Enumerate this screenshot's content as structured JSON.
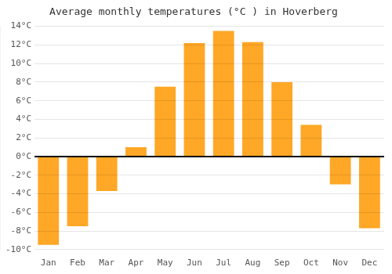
{
  "chart_data": {
    "type": "bar",
    "title": "Average monthly temperatures (°C ) in Hoverberg",
    "categories": [
      "Jan",
      "Feb",
      "Mar",
      "Apr",
      "May",
      "Jun",
      "Jul",
      "Aug",
      "Sep",
      "Oct",
      "Nov",
      "Dec"
    ],
    "values": [
      -9.5,
      -7.5,
      -3.7,
      1.0,
      7.5,
      12.2,
      13.5,
      12.3,
      8.0,
      3.4,
      -3.0,
      -7.7
    ],
    "color": "#FFA726",
    "ylim": [
      -10,
      14
    ],
    "yticks": [
      {
        "value": -10,
        "label": "-10°C"
      },
      {
        "value": -8,
        "label": "-8°C"
      },
      {
        "value": -6,
        "label": "-6°C"
      },
      {
        "value": -4,
        "label": "-4°C"
      },
      {
        "value": -2,
        "label": "-2°C"
      },
      {
        "value": 0,
        "label": "0°C"
      },
      {
        "value": 2,
        "label": "2°C"
      },
      {
        "value": 4,
        "label": "4°C"
      },
      {
        "value": 6,
        "label": "6°C"
      },
      {
        "value": 8,
        "label": "8°C"
      },
      {
        "value": 10,
        "label": "10°C"
      },
      {
        "value": 12,
        "label": "12°C"
      },
      {
        "value": 14,
        "label": "14°C"
      }
    ],
    "grid": true
  }
}
